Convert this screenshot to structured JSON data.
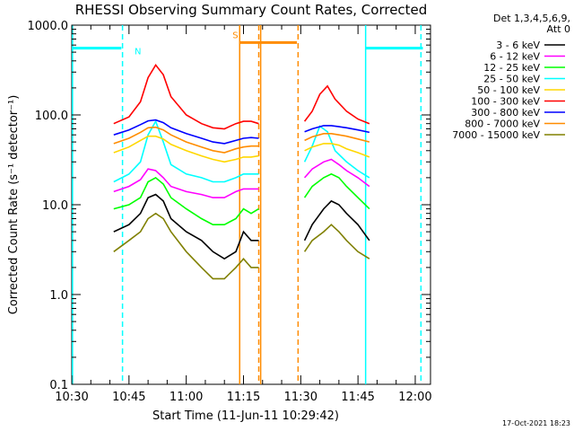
{
  "chart_data": {
    "type": "line",
    "title": "RHESSI Observing Summary Count Rates, Corrected",
    "xlabel": "Start Time (11-Jun-11 10:29:42)",
    "ylabel": "Corrected Count Rate (s⁻¹ detector⁻¹)",
    "y_scale": "log",
    "ylim": [
      0.1,
      1000.0
    ],
    "y_ticks": [
      "0.1",
      "1.0",
      "10.0",
      "100.0",
      "1000.0"
    ],
    "xlim": [
      630,
      724
    ],
    "x_ticks": [
      {
        "t": 630,
        "label": "10:30"
      },
      {
        "t": 645,
        "label": "10:45"
      },
      {
        "t": 660,
        "label": "11:00"
      },
      {
        "t": 675,
        "label": "11:15"
      },
      {
        "t": 690,
        "label": "11:30"
      },
      {
        "t": 705,
        "label": "11:45"
      },
      {
        "t": 720,
        "label": "12:00"
      }
    ],
    "legend_header": [
      "Det 1,3,4,5,6,9,",
      "Att 0"
    ],
    "legend_position": "right",
    "timestamp": "17-Oct-2021 18:23",
    "series": [
      {
        "name": "3 - 6 keV",
        "color": "#000000",
        "points": [
          [
            641,
            5
          ],
          [
            645,
            6
          ],
          [
            648,
            8
          ],
          [
            650,
            12
          ],
          [
            652,
            13
          ],
          [
            654,
            11
          ],
          [
            656,
            7
          ],
          [
            660,
            5
          ],
          [
            664,
            4
          ],
          [
            667,
            3
          ],
          [
            670,
            2.5
          ],
          [
            673,
            3
          ],
          [
            675,
            5
          ],
          [
            677,
            4
          ],
          [
            679,
            4
          ],
          null,
          [
            691,
            4
          ],
          [
            693,
            6
          ],
          [
            696,
            9
          ],
          [
            698,
            11
          ],
          [
            700,
            10
          ],
          [
            702,
            8
          ],
          [
            705,
            6
          ],
          [
            708,
            4
          ]
        ]
      },
      {
        "name": "6 - 12 keV",
        "color": "#ff00ff",
        "points": [
          [
            641,
            14
          ],
          [
            645,
            16
          ],
          [
            648,
            19
          ],
          [
            650,
            25
          ],
          [
            652,
            24
          ],
          [
            654,
            20
          ],
          [
            656,
            16
          ],
          [
            660,
            14
          ],
          [
            664,
            13
          ],
          [
            667,
            12
          ],
          [
            670,
            12
          ],
          [
            673,
            14
          ],
          [
            675,
            15
          ],
          [
            677,
            15
          ],
          [
            679,
            15
          ],
          null,
          [
            691,
            20
          ],
          [
            693,
            25
          ],
          [
            696,
            30
          ],
          [
            698,
            32
          ],
          [
            700,
            28
          ],
          [
            702,
            24
          ],
          [
            705,
            20
          ],
          [
            708,
            16
          ]
        ]
      },
      {
        "name": "12 - 25 keV",
        "color": "#00ff00",
        "points": [
          [
            641,
            9
          ],
          [
            645,
            10
          ],
          [
            648,
            12
          ],
          [
            650,
            18
          ],
          [
            652,
            20
          ],
          [
            654,
            17
          ],
          [
            656,
            12
          ],
          [
            660,
            9
          ],
          [
            664,
            7
          ],
          [
            667,
            6
          ],
          [
            670,
            6
          ],
          [
            673,
            7
          ],
          [
            675,
            9
          ],
          [
            677,
            8
          ],
          [
            679,
            9
          ],
          null,
          [
            691,
            12
          ],
          [
            693,
            16
          ],
          [
            696,
            20
          ],
          [
            698,
            22
          ],
          [
            700,
            20
          ],
          [
            702,
            16
          ],
          [
            705,
            12
          ],
          [
            708,
            9
          ]
        ]
      },
      {
        "name": "25 - 50 keV",
        "color": "#00ffff",
        "points": [
          [
            641,
            18
          ],
          [
            645,
            22
          ],
          [
            648,
            30
          ],
          [
            650,
            60
          ],
          [
            652,
            85
          ],
          [
            654,
            50
          ],
          [
            656,
            28
          ],
          [
            660,
            22
          ],
          [
            664,
            20
          ],
          [
            667,
            18
          ],
          [
            670,
            18
          ],
          [
            673,
            20
          ],
          [
            675,
            22
          ],
          [
            677,
            22
          ],
          [
            679,
            22
          ],
          null,
          [
            691,
            30
          ],
          [
            693,
            45
          ],
          [
            695,
            75
          ],
          [
            697,
            65
          ],
          [
            699,
            40
          ],
          [
            702,
            30
          ],
          [
            705,
            24
          ],
          [
            708,
            20
          ]
        ]
      },
      {
        "name": "50 - 100 keV",
        "color": "#ffd700",
        "points": [
          [
            641,
            38
          ],
          [
            645,
            44
          ],
          [
            648,
            52
          ],
          [
            650,
            58
          ],
          [
            652,
            58
          ],
          [
            654,
            54
          ],
          [
            656,
            47
          ],
          [
            660,
            40
          ],
          [
            664,
            35
          ],
          [
            667,
            32
          ],
          [
            670,
            30
          ],
          [
            673,
            32
          ],
          [
            675,
            34
          ],
          [
            677,
            34
          ],
          [
            679,
            35
          ],
          null,
          [
            691,
            40
          ],
          [
            693,
            44
          ],
          [
            696,
            48
          ],
          [
            698,
            48
          ],
          [
            700,
            46
          ],
          [
            702,
            42
          ],
          [
            705,
            38
          ],
          [
            708,
            34
          ]
        ]
      },
      {
        "name": "100 - 300 keV",
        "color": "#ff0000",
        "points": [
          [
            641,
            80
          ],
          [
            645,
            95
          ],
          [
            648,
            140
          ],
          [
            650,
            260
          ],
          [
            652,
            360
          ],
          [
            654,
            280
          ],
          [
            656,
            160
          ],
          [
            660,
            100
          ],
          [
            664,
            80
          ],
          [
            667,
            72
          ],
          [
            670,
            70
          ],
          [
            673,
            80
          ],
          [
            675,
            85
          ],
          [
            677,
            85
          ],
          [
            679,
            80
          ],
          null,
          [
            691,
            85
          ],
          [
            693,
            110
          ],
          [
            695,
            170
          ],
          [
            697,
            210
          ],
          [
            699,
            150
          ],
          [
            702,
            110
          ],
          [
            705,
            90
          ],
          [
            708,
            80
          ]
        ]
      },
      {
        "name": "300 - 800 keV",
        "color": "#0000ff",
        "points": [
          [
            641,
            60
          ],
          [
            645,
            68
          ],
          [
            648,
            78
          ],
          [
            650,
            86
          ],
          [
            652,
            88
          ],
          [
            654,
            82
          ],
          [
            656,
            72
          ],
          [
            660,
            62
          ],
          [
            664,
            55
          ],
          [
            667,
            50
          ],
          [
            670,
            48
          ],
          [
            673,
            52
          ],
          [
            675,
            55
          ],
          [
            677,
            56
          ],
          [
            679,
            55
          ],
          null,
          [
            691,
            65
          ],
          [
            693,
            70
          ],
          [
            696,
            76
          ],
          [
            698,
            76
          ],
          [
            700,
            74
          ],
          [
            702,
            72
          ],
          [
            705,
            68
          ],
          [
            708,
            64
          ]
        ]
      },
      {
        "name": "800 - 7000 keV",
        "color": "#ff8c00",
        "points": [
          [
            641,
            48
          ],
          [
            645,
            55
          ],
          [
            648,
            64
          ],
          [
            650,
            72
          ],
          [
            652,
            73
          ],
          [
            654,
            68
          ],
          [
            656,
            60
          ],
          [
            660,
            50
          ],
          [
            664,
            44
          ],
          [
            667,
            40
          ],
          [
            670,
            38
          ],
          [
            673,
            42
          ],
          [
            675,
            44
          ],
          [
            677,
            45
          ],
          [
            679,
            45
          ],
          null,
          [
            691,
            52
          ],
          [
            693,
            57
          ],
          [
            696,
            62
          ],
          [
            698,
            62
          ],
          [
            700,
            60
          ],
          [
            702,
            58
          ],
          [
            705,
            54
          ],
          [
            708,
            50
          ]
        ]
      },
      {
        "name": "7000 - 15000 keV",
        "color": "#808000",
        "points": [
          [
            641,
            3
          ],
          [
            645,
            4
          ],
          [
            648,
            5
          ],
          [
            650,
            7
          ],
          [
            652,
            8
          ],
          [
            654,
            7
          ],
          [
            656,
            5
          ],
          [
            660,
            3
          ],
          [
            664,
            2
          ],
          [
            667,
            1.5
          ],
          [
            670,
            1.5
          ],
          [
            673,
            2
          ],
          [
            675,
            2.5
          ],
          [
            677,
            2
          ],
          [
            679,
            2
          ],
          null,
          [
            691,
            3
          ],
          [
            693,
            4
          ],
          [
            696,
            5
          ],
          [
            698,
            6
          ],
          [
            700,
            5
          ],
          [
            702,
            4
          ],
          [
            705,
            3
          ],
          [
            708,
            2.5
          ]
        ]
      }
    ],
    "night_intervals": [
      {
        "label": "N",
        "color": "#00ffff",
        "start": 630,
        "end": 643,
        "level": 555
      },
      {
        "label": "",
        "color": "#00ffff",
        "start": 707,
        "end": 722,
        "level": 555
      }
    ],
    "saa_intervals": [
      {
        "label": "S",
        "color": "#ff8c00",
        "start": 674,
        "end": 689,
        "level": 640
      }
    ],
    "vertical_markers": [
      {
        "t": 630.2,
        "color": "#00ffff",
        "style": "solid"
      },
      {
        "t": 643.3,
        "color": "#00ffff",
        "style": "dashed"
      },
      {
        "t": 674.0,
        "color": "#ff8c00",
        "style": "solid"
      },
      {
        "t": 679.5,
        "color": "#ff8c00",
        "style": "solid"
      },
      {
        "t": 679.0,
        "color": "#ff8c00",
        "style": "dashed"
      },
      {
        "t": 689.3,
        "color": "#ff8c00",
        "style": "dashed"
      },
      {
        "t": 707.0,
        "color": "#00ffff",
        "style": "solid"
      },
      {
        "t": 721.5,
        "color": "#00ffff",
        "style": "dashed"
      }
    ]
  }
}
